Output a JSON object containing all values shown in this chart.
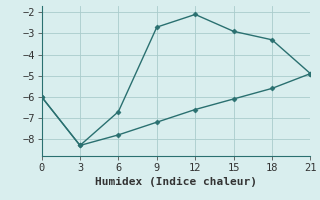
{
  "xlabel": "Humidex (Indice chaleur)",
  "line1_x": [
    0,
    3,
    6,
    9,
    12,
    15,
    18,
    21
  ],
  "line1_y": [
    -6.0,
    -8.3,
    -6.7,
    -2.7,
    -2.1,
    -2.9,
    -3.3,
    -4.9
  ],
  "line2_x": [
    0,
    3,
    6,
    9,
    12,
    15,
    18,
    21
  ],
  "line2_y": [
    -6.0,
    -8.3,
    -7.8,
    -7.2,
    -6.6,
    -6.1,
    -5.6,
    -4.9
  ],
  "line_color": "#2a7070",
  "bg_color": "#d9eeee",
  "grid_color": "#aacccc",
  "xlim": [
    0,
    21
  ],
  "ylim": [
    -8.8,
    -1.7
  ],
  "xticks": [
    0,
    3,
    6,
    9,
    12,
    15,
    18,
    21
  ],
  "yticks": [
    -8,
    -7,
    -6,
    -5,
    -4,
    -3,
    -2
  ],
  "marker": "D",
  "markersize": 2.5,
  "linewidth": 1.0,
  "xlabel_fontsize": 8,
  "tick_fontsize": 7.5
}
